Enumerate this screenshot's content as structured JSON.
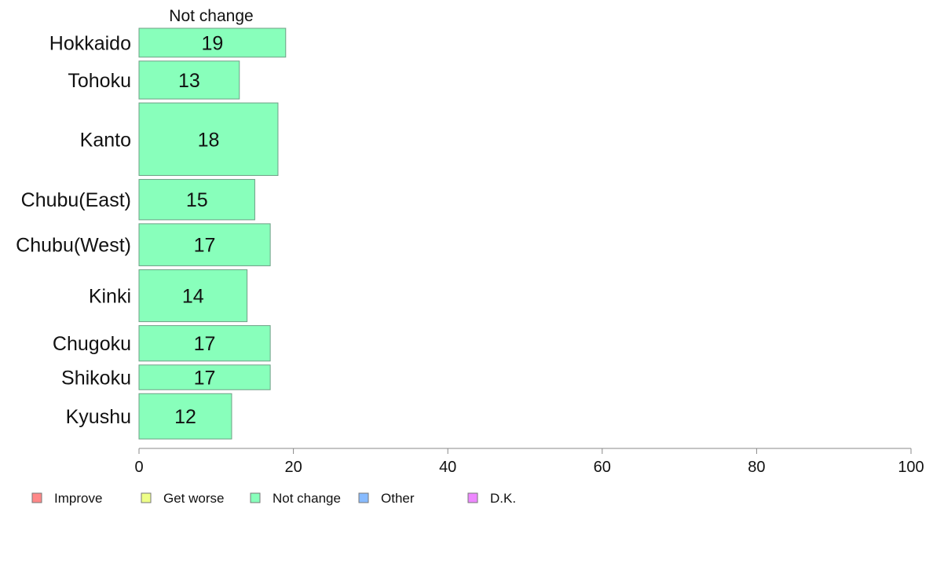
{
  "chart_data": {
    "type": "bar",
    "orientation": "horizontal",
    "stacked": true,
    "categories": [
      "Hokkaido",
      "Tohoku",
      "Kanto",
      "Chubu(East)",
      "Chubu(West)",
      "Kinki",
      "Chugoku",
      "Shikoku",
      "Kyushu"
    ],
    "category_weights": [
      35,
      46,
      88,
      49,
      51,
      63,
      43,
      30,
      55
    ],
    "series": [
      {
        "name": "Not change",
        "values": [
          19,
          13,
          18,
          15,
          17,
          14,
          17,
          17,
          12
        ],
        "color": "#88ffbb"
      }
    ],
    "series_title": "Not change",
    "xlim": [
      0,
      100
    ],
    "xticks": [
      0,
      20,
      40,
      60,
      80,
      100
    ],
    "grid": false,
    "legend": {
      "placement": "bottom-left",
      "items": [
        {
          "label": "Improve",
          "color": "#ff8888"
        },
        {
          "label": "Get worse",
          "color": "#eeff88"
        },
        {
          "label": "Not change",
          "color": "#88ffbb"
        },
        {
          "label": "Other",
          "color": "#88bbff"
        },
        {
          "label": "D.K.",
          "color": "#ee88ff"
        }
      ]
    }
  }
}
